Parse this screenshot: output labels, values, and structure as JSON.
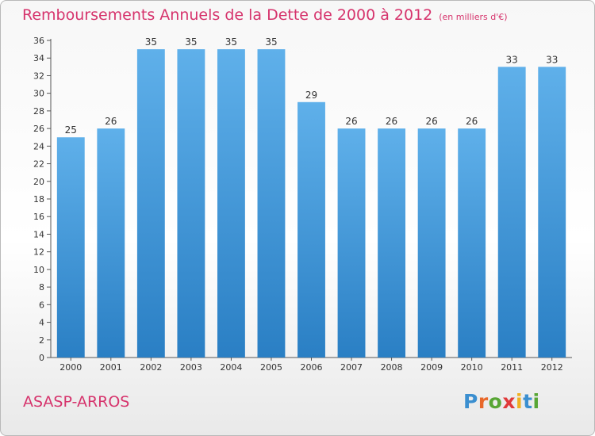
{
  "header": {
    "title": "Remboursements Annuels de la Dette de 2000 à 2012",
    "unit": "(en milliers d'€)"
  },
  "footer": {
    "commune": "ASASP-ARROS",
    "logo": {
      "text": "Proxiti",
      "letters": [
        {
          "ch": "P",
          "color": "#3b8fd0"
        },
        {
          "ch": "r",
          "color": "#e8682a"
        },
        {
          "ch": "o",
          "color": "#58a635"
        },
        {
          "ch": "x",
          "color": "#e03a3a"
        },
        {
          "ch": "i",
          "color": "#f0b020"
        },
        {
          "ch": "t",
          "color": "#3b8fd0"
        },
        {
          "ch": "i",
          "color": "#58a635"
        }
      ]
    }
  },
  "colors": {
    "title": "#d6336c",
    "bar_top": "#5fb0ea",
    "bar_bottom": "#2a7fc4",
    "axis": "#555555",
    "grid": "#dddddd"
  },
  "chart_data": {
    "type": "bar",
    "title": "Remboursements Annuels de la Dette de 2000 à 2012",
    "subtitle": "(en milliers d'€)",
    "xlabel": "",
    "ylabel": "",
    "categories": [
      "2000",
      "2001",
      "2002",
      "2003",
      "2004",
      "2005",
      "2006",
      "2007",
      "2008",
      "2009",
      "2010",
      "2011",
      "2012"
    ],
    "values": [
      25,
      26,
      35,
      35,
      35,
      35,
      29,
      26,
      26,
      26,
      26,
      33,
      33
    ],
    "ylim": [
      0,
      36
    ],
    "yticks": [
      0,
      2,
      4,
      6,
      8,
      10,
      12,
      14,
      16,
      18,
      20,
      22,
      24,
      26,
      28,
      30,
      32,
      34,
      36
    ],
    "grid": false,
    "legend": "none"
  }
}
